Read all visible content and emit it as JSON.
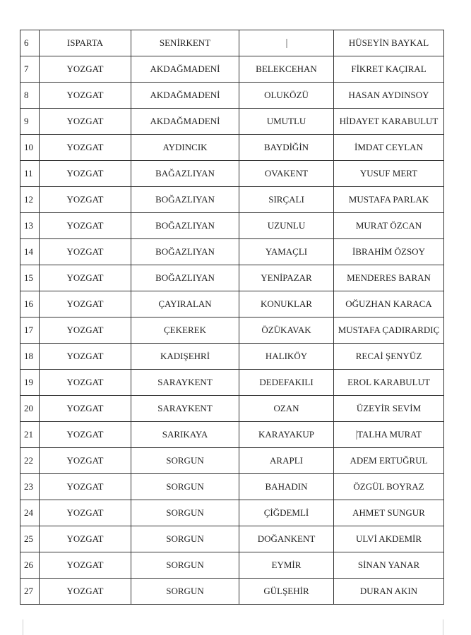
{
  "rows": [
    {
      "no": "6",
      "province": "ISPARTA",
      "district": "SENİRKENT",
      "village": "",
      "name": "HÜSEYİN BAYKAL"
    },
    {
      "no": "7",
      "province": "YOZGAT",
      "district": "AKDAĞMADENİ",
      "village": "BELEKCEHAN",
      "name": "FİKRET KAÇIRAL"
    },
    {
      "no": "8",
      "province": "YOZGAT",
      "district": "AKDAĞMADENİ",
      "village": "OLUKÖZÜ",
      "name": "HASAN AYDINSOY"
    },
    {
      "no": "9",
      "province": "YOZGAT",
      "district": "AKDAĞMADENİ",
      "village": "UMUTLU",
      "name": "HİDAYET KARABULUT"
    },
    {
      "no": "10",
      "province": "YOZGAT",
      "district": "AYDINCIK",
      "village": "BAYDİĞİN",
      "name": "İMDAT CEYLAN"
    },
    {
      "no": "11",
      "province": "YOZGAT",
      "district": "BAĞAZLIYAN",
      "village": "OVAKENT",
      "name": "YUSUF MERT"
    },
    {
      "no": "12",
      "province": "YOZGAT",
      "district": "BOĞAZLIYAN",
      "village": "SIRÇALI",
      "name": "MUSTAFA PARLAK"
    },
    {
      "no": "13",
      "province": "YOZGAT",
      "district": "BOĞAZLIYAN",
      "village": "UZUNLU",
      "name": "MURAT ÖZCAN"
    },
    {
      "no": "14",
      "province": "YOZGAT",
      "district": "BOĞAZLIYAN",
      "village": "YAMAÇLI",
      "name": "İBRAHİM ÖZSOY"
    },
    {
      "no": "15",
      "province": "YOZGAT",
      "district": "BOĞAZLIYAN",
      "village": "YENİPAZAR",
      "name": "MENDERES BARAN"
    },
    {
      "no": "16",
      "province": "YOZGAT",
      "district": "ÇAYIRALAN",
      "village": "KONUKLAR",
      "name": "OĞUZHAN KARACA"
    },
    {
      "no": "17",
      "province": "YOZGAT",
      "district": "ÇEKEREK",
      "village": "ÖZÜKAVAK",
      "name": "MUSTAFA ÇADIRARDIÇ"
    },
    {
      "no": "18",
      "province": "YOZGAT",
      "district": "KADIŞEHRİ",
      "village": "HALIKÖY",
      "name": "RECAİ ŞENYÜZ"
    },
    {
      "no": "19",
      "province": "YOZGAT",
      "district": "SARAYKENT",
      "village": "DEDEFAKILI",
      "name": "EROL KARABULUT"
    },
    {
      "no": "20",
      "province": "YOZGAT",
      "district": "SARAYKENT",
      "village": "OZAN",
      "name": "ÜZEYİR SEVİM"
    },
    {
      "no": "21",
      "province": "YOZGAT",
      "district": "SARIKAYA",
      "village": "KARAYAKUP",
      "name": "TALHA MURAT"
    },
    {
      "no": "22",
      "province": "YOZGAT",
      "district": "SORGUN",
      "village": "ARAPLI",
      "name": "ADEM ERTUĞRUL"
    },
    {
      "no": "23",
      "province": "YOZGAT",
      "district": "SORGUN",
      "village": "BAHADIN",
      "name": "ÖZGÜL BOYRAZ"
    },
    {
      "no": "24",
      "province": "YOZGAT",
      "district": "SORGUN",
      "village": "ÇİĞDEMLİ",
      "name": "AHMET SUNGUR"
    },
    {
      "no": "25",
      "province": "YOZGAT",
      "district": "SORGUN",
      "village": "DOĞANKENT",
      "name": "ULVİ AKDEMİR"
    },
    {
      "no": "26",
      "province": "YOZGAT",
      "district": "SORGUN",
      "village": "EYMİR",
      "name": "SİNAN YANAR"
    },
    {
      "no": "27",
      "province": "YOZGAT",
      "district": "SORGUN",
      "village": "GÜLŞEHİR",
      "name": "DURAN AKIN"
    }
  ]
}
